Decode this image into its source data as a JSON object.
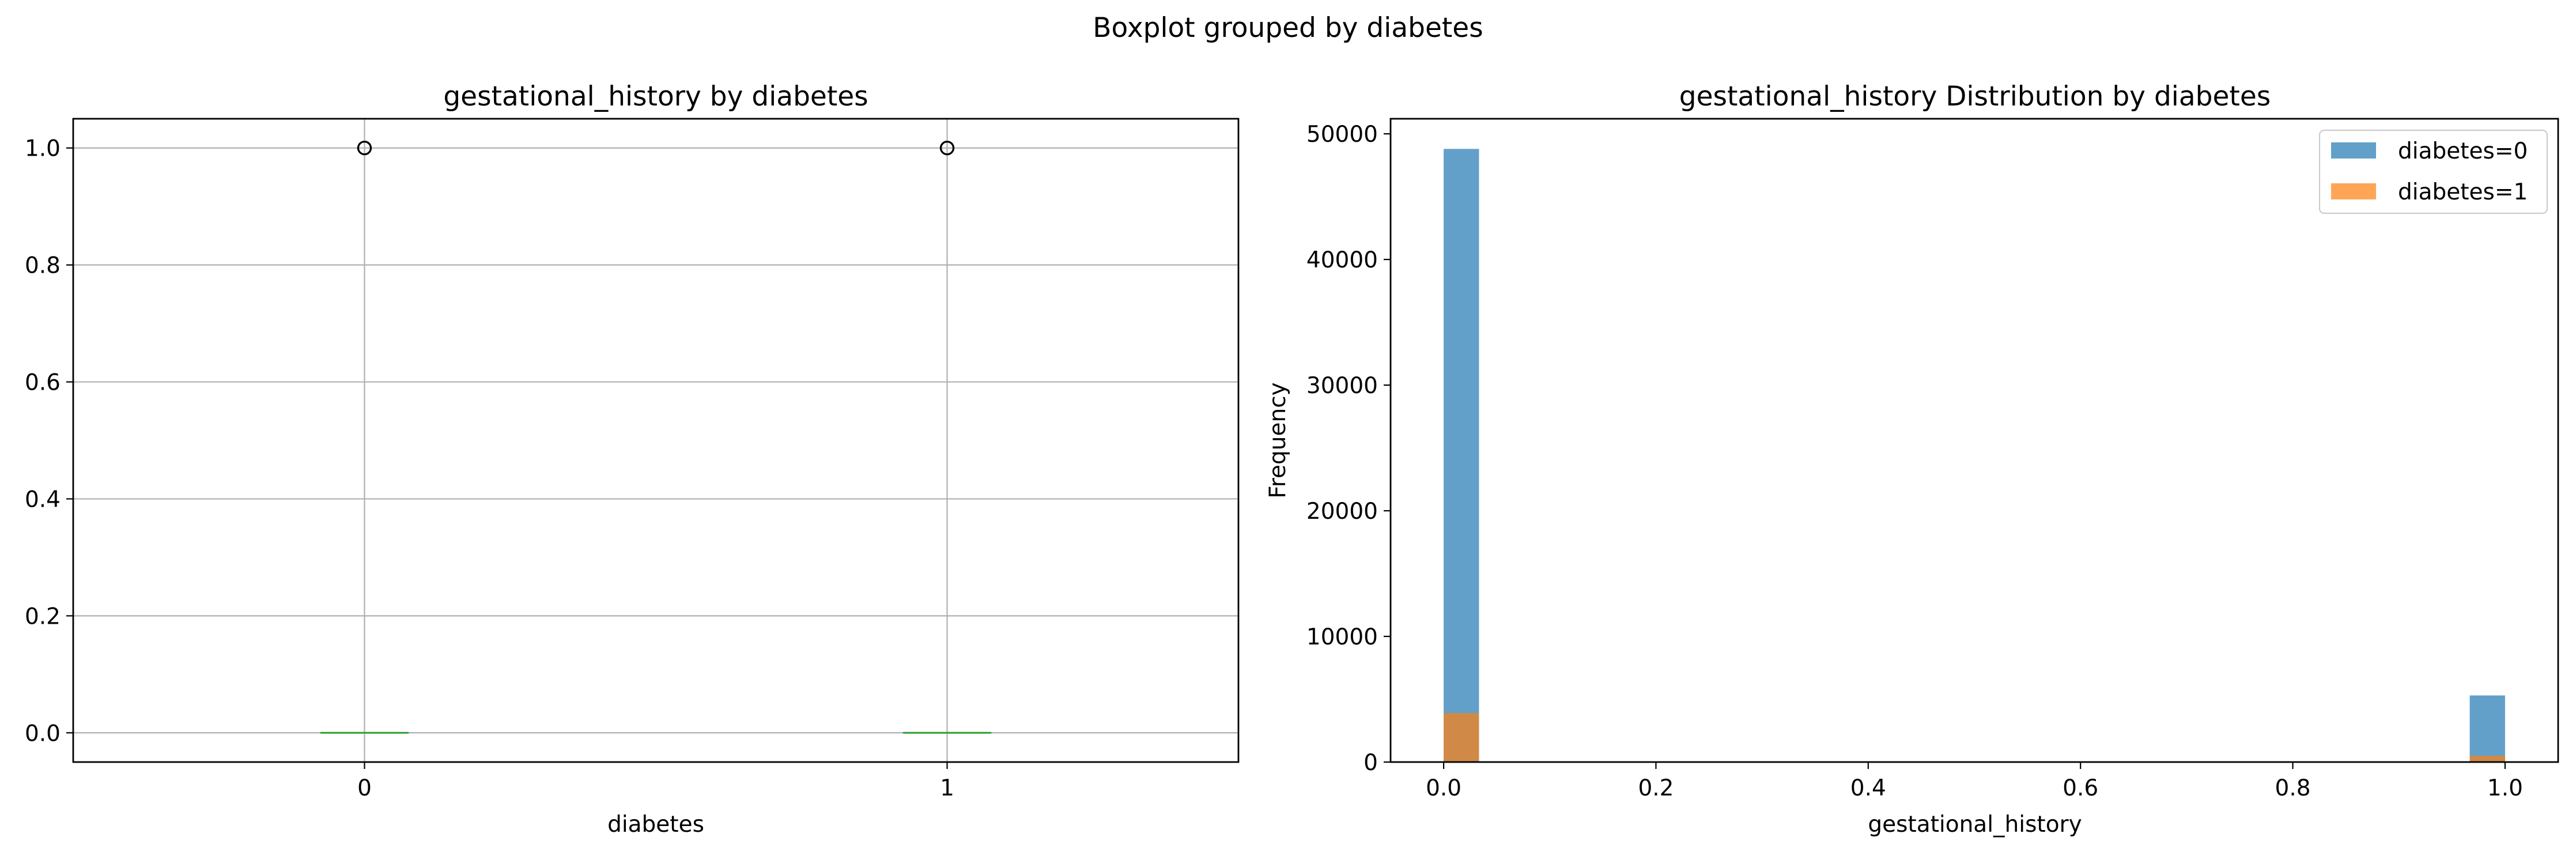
{
  "figure": {
    "suptitle": "Boxplot grouped by diabetes"
  },
  "chart_data": [
    {
      "type": "boxplot",
      "title": "gestational_history by diabetes",
      "xlabel": "diabetes",
      "ylabel": "",
      "categories": [
        "0",
        "1"
      ],
      "ylim": [
        -0.05,
        1.05
      ],
      "yticks": [
        0.0,
        0.2,
        0.4,
        0.6,
        0.8,
        1.0
      ],
      "ytick_labels": [
        "0.0",
        "0.2",
        "0.4",
        "0.6",
        "0.8",
        "1.0"
      ],
      "grid": true,
      "boxes": [
        {
          "category": "0",
          "q1": 0,
          "median": 0,
          "q3": 0,
          "whisker_low": 0,
          "whisker_high": 0,
          "fliers": [
            1
          ]
        },
        {
          "category": "1",
          "q1": 0,
          "median": 0,
          "q3": 0,
          "whisker_low": 0,
          "whisker_high": 0,
          "fliers": [
            1
          ]
        }
      ],
      "colors": {
        "median": "#2ca02c",
        "box": "#1f77b4",
        "flier": "#000000"
      }
    },
    {
      "type": "histogram",
      "title": "gestational_history Distribution by diabetes",
      "xlabel": "gestational_history",
      "ylabel": "Frequency",
      "xlim": [
        -0.05,
        1.05
      ],
      "ylim": [
        0,
        51200
      ],
      "xticks": [
        0.0,
        0.2,
        0.4,
        0.6,
        0.8,
        1.0
      ],
      "xtick_labels": [
        "0.0",
        "0.2",
        "0.4",
        "0.6",
        "0.8",
        "1.0"
      ],
      "yticks": [
        0,
        10000,
        20000,
        30000,
        40000,
        50000
      ],
      "ytick_labels": [
        "0",
        "10000",
        "20000",
        "30000",
        "40000",
        "50000"
      ],
      "bins": 30,
      "legend_position": "upper right",
      "series": [
        {
          "name": "diabetes=0",
          "color": "#1f77b4",
          "alpha": 0.7,
          "bars": [
            {
              "x0": 0.0,
              "x1": 0.0333,
              "count": 48800
            },
            {
              "x0": 0.9667,
              "x1": 1.0,
              "count": 5300
            }
          ]
        },
        {
          "name": "diabetes=1",
          "color": "#ff7f0e",
          "alpha": 0.7,
          "bars": [
            {
              "x0": 0.0,
              "x1": 0.0333,
              "count": 3900
            },
            {
              "x0": 0.9667,
              "x1": 1.0,
              "count": 500
            }
          ]
        }
      ]
    }
  ]
}
